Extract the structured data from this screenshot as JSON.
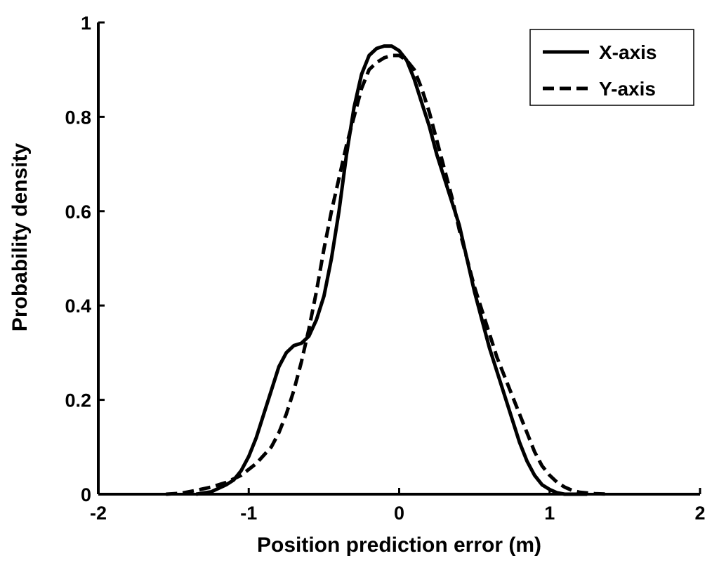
{
  "chart_data": {
    "type": "line",
    "xlabel": "Position prediction error (m)",
    "ylabel": "Probability density",
    "xlim": [
      -2,
      2
    ],
    "ylim": [
      0,
      1
    ],
    "xticks": [
      "-2",
      "-1",
      "0",
      "1",
      "2"
    ],
    "yticks": [
      "0",
      "0.2",
      "0.4",
      "0.6",
      "0.8",
      "1"
    ],
    "legend_position": "top-right",
    "grid": false,
    "series": [
      {
        "name": "X-axis",
        "style": "solid",
        "color": "#000000",
        "x": [
          -1.35,
          -1.25,
          -1.15,
          -1.1,
          -1.05,
          -1.0,
          -0.95,
          -0.9,
          -0.85,
          -0.8,
          -0.75,
          -0.7,
          -0.65,
          -0.6,
          -0.55,
          -0.5,
          -0.45,
          -0.4,
          -0.35,
          -0.3,
          -0.25,
          -0.2,
          -0.15,
          -0.1,
          -0.05,
          0.0,
          0.05,
          0.1,
          0.15,
          0.2,
          0.25,
          0.3,
          0.35,
          0.4,
          0.45,
          0.5,
          0.55,
          0.6,
          0.65,
          0.7,
          0.75,
          0.8,
          0.85,
          0.9,
          0.95,
          1.0,
          1.05,
          1.1,
          1.15,
          1.2,
          1.25
        ],
        "y": [
          0.0,
          0.005,
          0.02,
          0.03,
          0.05,
          0.08,
          0.12,
          0.17,
          0.22,
          0.27,
          0.3,
          0.315,
          0.32,
          0.335,
          0.37,
          0.42,
          0.5,
          0.6,
          0.72,
          0.82,
          0.89,
          0.93,
          0.945,
          0.95,
          0.95,
          0.94,
          0.92,
          0.88,
          0.83,
          0.78,
          0.72,
          0.67,
          0.62,
          0.57,
          0.5,
          0.43,
          0.37,
          0.31,
          0.26,
          0.21,
          0.16,
          0.11,
          0.07,
          0.04,
          0.02,
          0.01,
          0.003,
          0.0,
          0.0,
          0.0,
          0.0
        ]
      },
      {
        "name": "Y-axis",
        "style": "dashed",
        "color": "#000000",
        "x": [
          -1.55,
          -1.45,
          -1.35,
          -1.25,
          -1.15,
          -1.05,
          -0.95,
          -0.85,
          -0.8,
          -0.75,
          -0.7,
          -0.65,
          -0.6,
          -0.55,
          -0.5,
          -0.45,
          -0.4,
          -0.35,
          -0.3,
          -0.25,
          -0.2,
          -0.15,
          -0.1,
          -0.05,
          0.0,
          0.05,
          0.1,
          0.15,
          0.2,
          0.25,
          0.3,
          0.35,
          0.4,
          0.45,
          0.5,
          0.55,
          0.6,
          0.65,
          0.7,
          0.75,
          0.8,
          0.85,
          0.9,
          0.95,
          1.0,
          1.05,
          1.1,
          1.15,
          1.2,
          1.3,
          1.4
        ],
        "y": [
          0.0,
          0.002,
          0.008,
          0.015,
          0.025,
          0.04,
          0.065,
          0.1,
          0.13,
          0.17,
          0.22,
          0.28,
          0.35,
          0.43,
          0.52,
          0.6,
          0.67,
          0.74,
          0.8,
          0.86,
          0.9,
          0.915,
          0.925,
          0.93,
          0.93,
          0.92,
          0.9,
          0.86,
          0.81,
          0.75,
          0.69,
          0.63,
          0.56,
          0.5,
          0.44,
          0.39,
          0.34,
          0.29,
          0.25,
          0.21,
          0.17,
          0.13,
          0.09,
          0.06,
          0.04,
          0.025,
          0.015,
          0.008,
          0.004,
          0.001,
          0.0
        ]
      }
    ]
  }
}
